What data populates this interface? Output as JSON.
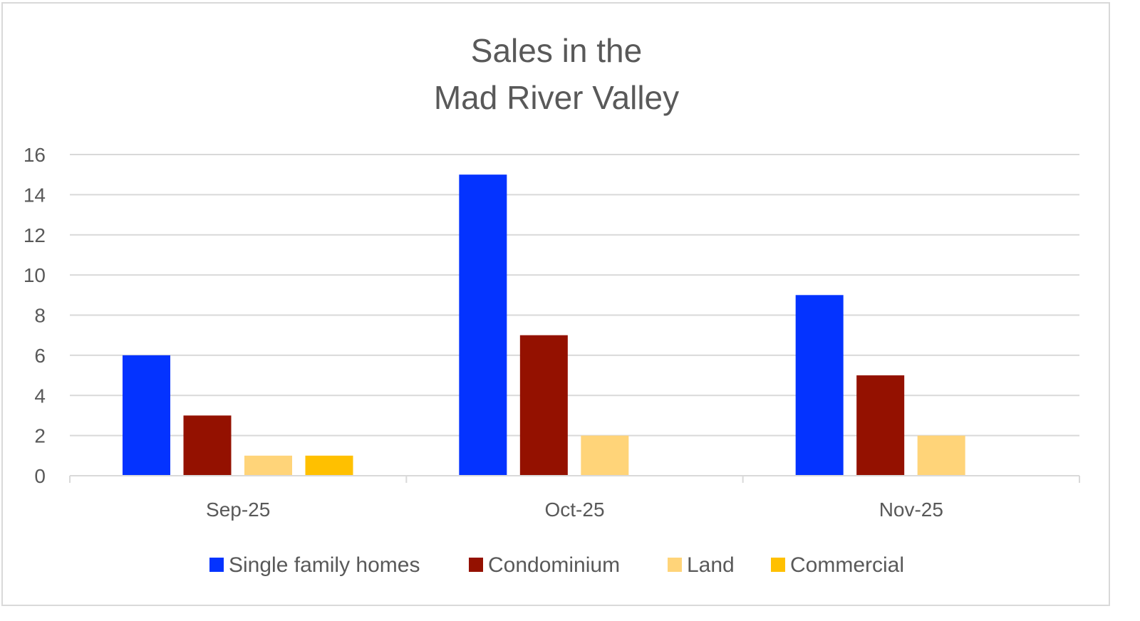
{
  "chart_data": {
    "type": "bar",
    "title_lines": [
      "Sales in the",
      "Mad River Valley"
    ],
    "categories": [
      "Sep-25",
      "Oct-25",
      "Nov-25"
    ],
    "series": [
      {
        "name": "Single family homes",
        "color": "#0433FF",
        "values": [
          6,
          15,
          9
        ]
      },
      {
        "name": "Condominium",
        "color": "#941100",
        "values": [
          3,
          7,
          5
        ]
      },
      {
        "name": "Land",
        "color": "#FFD479",
        "values": [
          1,
          2,
          2
        ]
      },
      {
        "name": "Commercial",
        "color": "#FFC000",
        "values": [
          1,
          0,
          0
        ]
      }
    ],
    "ylim": [
      0,
      16
    ],
    "yticks": [
      "0",
      "2",
      "4",
      "6",
      "8",
      "10",
      "12",
      "14",
      "16"
    ],
    "xlabel": "",
    "ylabel": "",
    "grid": true,
    "legend_position": "bottom"
  }
}
